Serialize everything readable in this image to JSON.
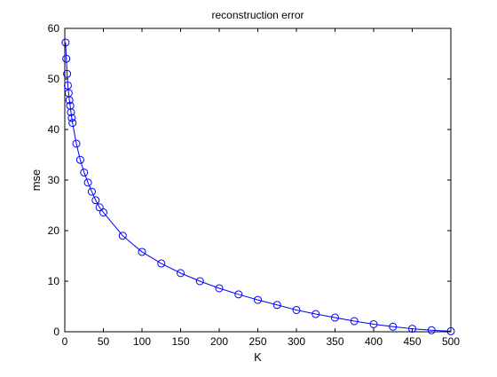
{
  "chart_data": {
    "type": "line",
    "title": "reconstruction error",
    "xlabel": "K",
    "ylabel": "mse",
    "xlim": [
      0,
      500
    ],
    "ylim": [
      0,
      60
    ],
    "xticks": [
      "0",
      "50",
      "100",
      "150",
      "200",
      "250",
      "300",
      "350",
      "400",
      "450",
      "500"
    ],
    "yticks": [
      "0",
      "10",
      "20",
      "30",
      "40",
      "50",
      "60"
    ],
    "grid": false,
    "legend": "none",
    "marker": "circle",
    "line_color": "#0000ff",
    "series": [
      {
        "x": [
          1,
          2,
          3,
          4,
          5,
          6,
          7,
          8,
          9,
          10,
          15,
          20,
          25,
          30,
          35,
          40,
          45,
          50,
          75,
          100,
          125,
          150,
          175,
          200,
          225,
          250,
          275,
          300,
          325,
          350,
          375,
          400,
          425,
          450,
          475,
          500
        ],
        "y": [
          57.2,
          54.0,
          51.0,
          48.7,
          47.2,
          45.8,
          44.7,
          43.4,
          42.3,
          41.3,
          37.2,
          34.0,
          31.5,
          29.5,
          27.7,
          26.0,
          24.6,
          23.6,
          19.0,
          15.8,
          13.5,
          11.6,
          10.0,
          8.6,
          7.4,
          6.3,
          5.3,
          4.3,
          3.5,
          2.8,
          2.1,
          1.5,
          1.0,
          0.6,
          0.3,
          0.1
        ]
      }
    ]
  }
}
